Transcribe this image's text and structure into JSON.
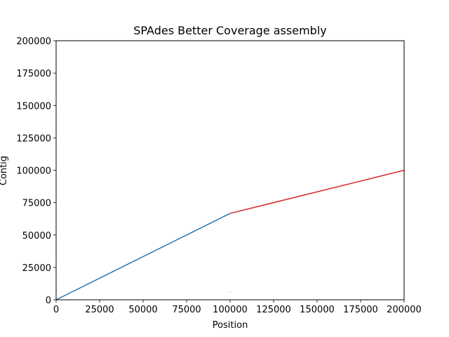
{
  "chart_data": {
    "type": "line",
    "title": "SPAdes Better Coverage assembly",
    "xlabel": "Position",
    "ylabel": "Contig",
    "xlim": [
      0,
      200000
    ],
    "ylim": [
      0,
      200000
    ],
    "xticks": [
      0,
      25000,
      50000,
      75000,
      100000,
      125000,
      150000,
      175000,
      200000
    ],
    "yticks": [
      0,
      25000,
      50000,
      75000,
      100000,
      125000,
      150000,
      175000,
      200000
    ],
    "xtick_labels": [
      "0",
      "25000",
      "50000",
      "75000",
      "100000",
      "125000",
      "150000",
      "175000",
      "200000"
    ],
    "ytick_labels": [
      "0",
      "25000",
      "50000",
      "75000",
      "100000",
      "125000",
      "150000",
      "175000",
      "200000"
    ],
    "grid": false,
    "series": [
      {
        "color": "#1f77b4",
        "x": [
          0,
          100000
        ],
        "y": [
          0,
          66700
        ]
      },
      {
        "color": "#ff7f0e",
        "x": [
          99800,
          100200
        ],
        "y": [
          5800,
          5800
        ]
      },
      {
        "color": "#d62728",
        "x": [
          100000,
          200000
        ],
        "y": [
          66700,
          100000
        ]
      }
    ]
  }
}
